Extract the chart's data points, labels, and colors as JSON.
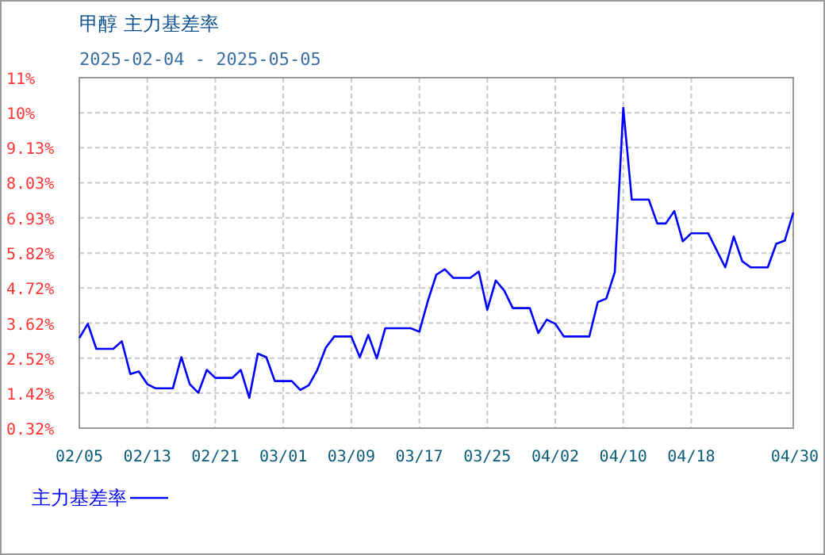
{
  "chart_data": {
    "type": "line",
    "title": "甲醇  主力基差率",
    "subtitle": "2025-02-04 - 2025-05-05",
    "x": [
      "2025-02-05",
      "2025-02-06",
      "2025-02-07",
      "2025-02-09",
      "2025-02-10",
      "2025-02-11",
      "2025-02-12",
      "2025-02-13",
      "2025-02-14",
      "2025-02-16",
      "2025-02-17",
      "2025-02-18",
      "2025-02-19",
      "2025-02-20",
      "2025-02-21",
      "2025-02-23",
      "2025-02-24",
      "2025-02-25",
      "2025-02-26",
      "2025-02-27",
      "2025-02-28",
      "2025-03-02",
      "2025-03-03",
      "2025-03-04",
      "2025-03-05",
      "2025-03-06",
      "2025-03-07",
      "2025-03-09",
      "2025-03-10",
      "2025-03-11",
      "2025-03-12",
      "2025-03-13",
      "2025-03-16",
      "2025-03-17",
      "2025-03-18",
      "2025-03-19",
      "2025-03-20",
      "2025-03-21",
      "2025-03-23",
      "2025-03-24",
      "2025-03-25",
      "2025-03-26",
      "2025-03-27",
      "2025-03-28",
      "2025-03-30",
      "2025-03-31",
      "2025-04-01",
      "2025-04-02",
      "2025-04-03",
      "2025-04-06",
      "2025-04-07",
      "2025-04-08",
      "2025-04-09",
      "2025-04-10",
      "2025-04-11",
      "2025-04-13",
      "2025-04-14",
      "2025-04-15",
      "2025-04-16",
      "2025-04-17",
      "2025-04-18",
      "2025-04-20",
      "2025-04-22",
      "2025-04-23",
      "2025-04-24",
      "2025-04-25",
      "2025-04-27",
      "2025-04-28",
      "2025-04-29",
      "2025-04-30"
    ],
    "series": [
      {
        "name": "主力基差率",
        "color": "#0000ff",
        "values": [
          3.15,
          3.6,
          2.81,
          2.81,
          3.05,
          2.02,
          2.1,
          1.7,
          1.57,
          1.57,
          2.55,
          1.7,
          1.43,
          2.15,
          1.9,
          1.9,
          2.15,
          1.27,
          2.66,
          2.55,
          1.8,
          1.8,
          1.52,
          1.67,
          2.15,
          2.85,
          3.2,
          3.2,
          2.55,
          3.25,
          2.51,
          3.46,
          3.46,
          3.35,
          4.31,
          5.14,
          5.31,
          5.04,
          5.04,
          5.24,
          4.04,
          4.96,
          4.64,
          4.09,
          4.09,
          3.31,
          3.73,
          3.6,
          3.2,
          3.2,
          4.28,
          4.39,
          5.22,
          10.38,
          7.5,
          7.5,
          6.75,
          6.75,
          7.14,
          6.19,
          6.44,
          6.44,
          5.37,
          6.34,
          5.56,
          5.37,
          5.37,
          6.11,
          6.21,
          7.09
        ]
      }
    ],
    "xlim": [
      "2025-02-05",
      "2025-04-30"
    ],
    "xticks": [
      {
        "value": "2025-02-05",
        "label": "02/05"
      },
      {
        "value": "2025-02-13",
        "label": "02/13"
      },
      {
        "value": "2025-02-21",
        "label": "02/21"
      },
      {
        "value": "2025-03-01",
        "label": "03/01"
      },
      {
        "value": "2025-03-09",
        "label": "03/09"
      },
      {
        "value": "2025-03-17",
        "label": "03/17"
      },
      {
        "value": "2025-03-25",
        "label": "03/25"
      },
      {
        "value": "2025-04-02",
        "label": "04/02"
      },
      {
        "value": "2025-04-10",
        "label": "04/10"
      },
      {
        "value": "2025-04-18",
        "label": "04/18"
      },
      {
        "value": "2025-04-30",
        "label": "04/30"
      }
    ],
    "ylim": [
      0.32,
      11.33
    ],
    "yticks": [
      {
        "value": 0.32,
        "label": "0.32%"
      },
      {
        "value": 1.42,
        "label": "1.42%"
      },
      {
        "value": 2.52,
        "label": "2.52%"
      },
      {
        "value": 3.62,
        "label": "3.62%"
      },
      {
        "value": 4.72,
        "label": "4.72%"
      },
      {
        "value": 5.82,
        "label": "5.82%"
      },
      {
        "value": 6.93,
        "label": "6.93%"
      },
      {
        "value": 8.03,
        "label": "8.03%"
      },
      {
        "value": 9.13,
        "label": "9.13%"
      },
      {
        "value": 10.23,
        "label": "10%"
      },
      {
        "value": 11.33,
        "label": "11%"
      }
    ],
    "grid": true,
    "legend": "bottom"
  }
}
